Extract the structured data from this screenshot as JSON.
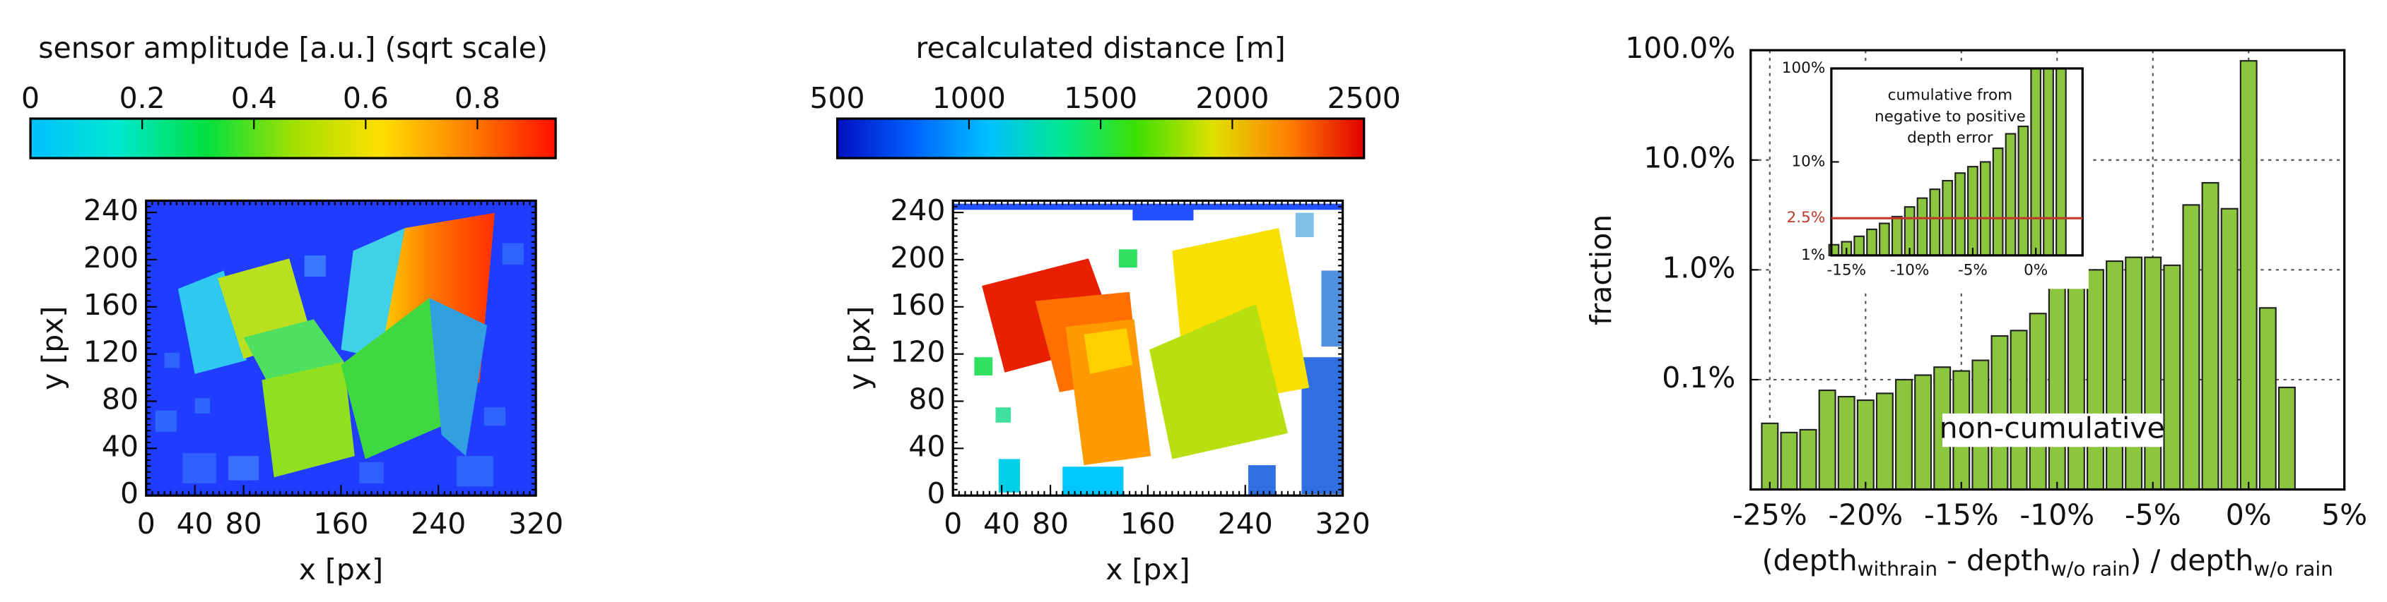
{
  "chart_data": [
    {
      "type": "image",
      "title": "sensor amplitude [a.u.] (sqrt scale)",
      "clim": [
        0,
        0.94
      ],
      "cticks": [
        0,
        0.2,
        0.4,
        0.6,
        0.8
      ],
      "colormap": [
        "#00c0ff",
        "#00e8d0",
        "#00e040",
        "#a0e000",
        "#ffe000",
        "#ff8000",
        "#ff1000"
      ],
      "x_label": "x [px]",
      "y_label": "y [px]",
      "xlim": [
        0,
        320
      ],
      "ylim": [
        0,
        250
      ],
      "xticks": [
        0,
        40,
        80,
        160,
        240,
        320
      ],
      "yticks": [
        0,
        40,
        80,
        120,
        160,
        200,
        240
      ]
    },
    {
      "type": "image",
      "title": "recalculated distance [m]",
      "clim": [
        500,
        2500
      ],
      "cticks": [
        500,
        1000,
        1500,
        2000,
        2500
      ],
      "colormap": [
        "#0010c0",
        "#0060ff",
        "#00c0ff",
        "#00e890",
        "#40e000",
        "#e0e000",
        "#ff8000",
        "#e00000"
      ],
      "x_label": "x [px]",
      "y_label": "y [px]",
      "xlim": [
        0,
        320
      ],
      "ylim": [
        0,
        250
      ],
      "xticks": [
        0,
        40,
        80,
        160,
        240,
        320
      ],
      "yticks": [
        0,
        40,
        80,
        120,
        160,
        200,
        240
      ]
    },
    {
      "type": "histogram",
      "y_label": "fraction",
      "x_label": [
        "(depth",
        "withrain",
        " - depth",
        "w/o rain",
        ") / depth",
        "w/o rain"
      ],
      "annotation": "non-cumulative",
      "log_y": true,
      "grid": true,
      "color": "#8cc63f",
      "bins": [
        -25.5,
        -24.5,
        -23.5,
        -22.5,
        -21.5,
        -20.5,
        -19.5,
        -18.5,
        -17.5,
        -16.5,
        -15.5,
        -14.5,
        -13.5,
        -12.5,
        -11.5,
        -10.5,
        -9.5,
        -8.5,
        -7.5,
        -6.5,
        -5.5,
        -4.5,
        -3.5,
        -2.5,
        -1.5,
        -0.5,
        0.5,
        1.5,
        2.5
      ],
      "values": [
        0.04,
        0.033,
        0.035,
        0.08,
        0.07,
        0.065,
        0.075,
        0.1,
        0.11,
        0.13,
        0.12,
        0.15,
        0.25,
        0.28,
        0.4,
        0.7,
        0.85,
        1.0,
        1.2,
        1.3,
        1.3,
        1.1,
        3.9,
        6.2,
        3.6,
        80,
        0.45,
        0.085
      ],
      "xlim": [
        -26,
        5
      ],
      "ylim": [
        0.01,
        100
      ],
      "xticks": [
        {
          "value": -25,
          "label": "-25%"
        },
        {
          "value": -20,
          "label": "-20%"
        },
        {
          "value": -15,
          "label": "-15%"
        },
        {
          "value": -10,
          "label": "-10%"
        },
        {
          "value": -5,
          "label": "-5%"
        },
        {
          "value": 0,
          "label": "0%"
        },
        {
          "value": 5,
          "label": "5%"
        }
      ],
      "yticks": [
        {
          "value": 100,
          "label": "100.0%"
        },
        {
          "value": 10,
          "label": "10.0%"
        },
        {
          "value": 1,
          "label": "1.0%"
        },
        {
          "value": 0.1,
          "label": "0.1%"
        }
      ]
    },
    {
      "type": "histogram",
      "title": [
        "cumulative from",
        "negative to positive",
        "depth error"
      ],
      "log_y": true,
      "color": "#8cc63f",
      "bins": [
        -16.5,
        -15.5,
        -14.5,
        -13.5,
        -12.5,
        -11.5,
        -10.5,
        -9.5,
        -8.5,
        -7.5,
        -6.5,
        -5.5,
        -4.5,
        -3.5,
        -2.5,
        -1.5,
        -0.5,
        0.5,
        1.5,
        2.5
      ],
      "values": [
        1.3,
        1.4,
        1.6,
        1.9,
        2.2,
        2.6,
        3.3,
        4.1,
        5.1,
        6.3,
        7.6,
        8.9,
        10,
        14,
        20,
        24,
        100,
        100,
        100
      ],
      "xlim": [
        -16.2,
        3.7
      ],
      "ylim": [
        1,
        100
      ],
      "xticks": [
        {
          "value": -15,
          "label": "-15%"
        },
        {
          "value": -10,
          "label": "-10%"
        },
        {
          "value": -5,
          "label": "-5%"
        },
        {
          "value": 0,
          "label": "0%"
        }
      ],
      "yticks": [
        {
          "value": 1,
          "label": "1%"
        },
        {
          "value": 10,
          "label": "10%"
        },
        {
          "value": 100,
          "label": "100%"
        }
      ],
      "reference": {
        "value": 2.5,
        "label": "2.5%",
        "color": "#c0392b"
      }
    }
  ]
}
